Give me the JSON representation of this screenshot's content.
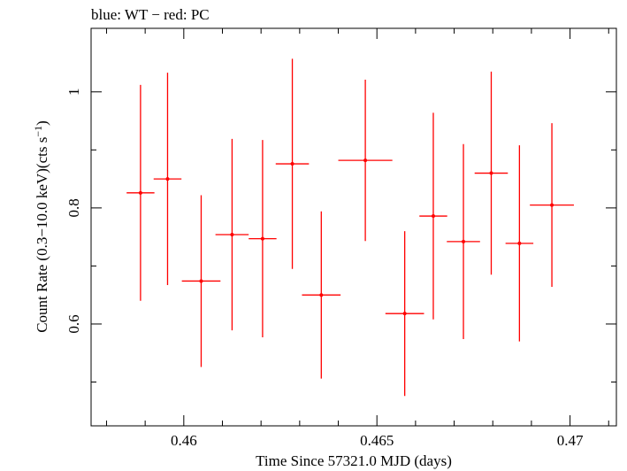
{
  "chart_data": {
    "type": "scatter",
    "title": "blue: WT − red: PC",
    "xlabel": "Time Since 57321.0 MJD (days)",
    "ylabel_main": "Count Rate (0.3−10.0 keV)(cts s",
    "ylabel_sup": "−1",
    "ylabel_close": ")",
    "xlim": [
      0.4576,
      0.4712
    ],
    "ylim": [
      0.4245,
      1.1095
    ],
    "x_major_ticks": [
      0.46,
      0.465,
      0.47
    ],
    "x_tick_labels": [
      "0.46",
      "0.465",
      "0.47"
    ],
    "x_minor_step": 0.001,
    "y_major_ticks": [
      0.6,
      0.8,
      1.0
    ],
    "y_tick_labels": [
      "0.6",
      "0.8",
      "1"
    ],
    "y_minor_ticks": [
      0.5,
      0.7,
      0.9
    ],
    "grid": false,
    "series": [
      {
        "color": "#ff0000",
        "points": [
          {
            "x": 0.45888,
            "xerr": 0.00036,
            "y": 0.826,
            "ylo": 0.64,
            "yhi": 1.012
          },
          {
            "x": 0.45958,
            "xerr": 0.00036,
            "y": 0.85,
            "ylo": 0.667,
            "yhi": 1.033
          },
          {
            "x": 0.46045,
            "xerr": 0.0005,
            "y": 0.674,
            "ylo": 0.526,
            "yhi": 0.822
          },
          {
            "x": 0.46125,
            "xerr": 0.00043,
            "y": 0.754,
            "ylo": 0.589,
            "yhi": 0.919
          },
          {
            "x": 0.46204,
            "xerr": 0.00036,
            "y": 0.747,
            "ylo": 0.577,
            "yhi": 0.917
          },
          {
            "x": 0.46281,
            "xerr": 0.00043,
            "y": 0.876,
            "ylo": 0.695,
            "yhi": 1.057
          },
          {
            "x": 0.46356,
            "xerr": 0.0005,
            "y": 0.65,
            "ylo": 0.506,
            "yhi": 0.794
          },
          {
            "x": 0.4647,
            "xerr": 0.0007,
            "y": 0.882,
            "ylo": 0.743,
            "yhi": 1.021
          },
          {
            "x": 0.46572,
            "xerr": 0.0005,
            "y": 0.618,
            "ylo": 0.476,
            "yhi": 0.76
          },
          {
            "x": 0.46646,
            "xerr": 0.00036,
            "y": 0.786,
            "ylo": 0.608,
            "yhi": 0.964
          },
          {
            "x": 0.46724,
            "xerr": 0.00043,
            "y": 0.742,
            "ylo": 0.574,
            "yhi": 0.91
          },
          {
            "x": 0.46796,
            "xerr": 0.00043,
            "y": 0.86,
            "ylo": 0.685,
            "yhi": 1.035
          },
          {
            "x": 0.46869,
            "xerr": 0.00036,
            "y": 0.739,
            "ylo": 0.57,
            "yhi": 0.908
          },
          {
            "x": 0.46953,
            "xerr": 0.00057,
            "y": 0.805,
            "ylo": 0.664,
            "yhi": 0.946
          }
        ]
      }
    ]
  }
}
